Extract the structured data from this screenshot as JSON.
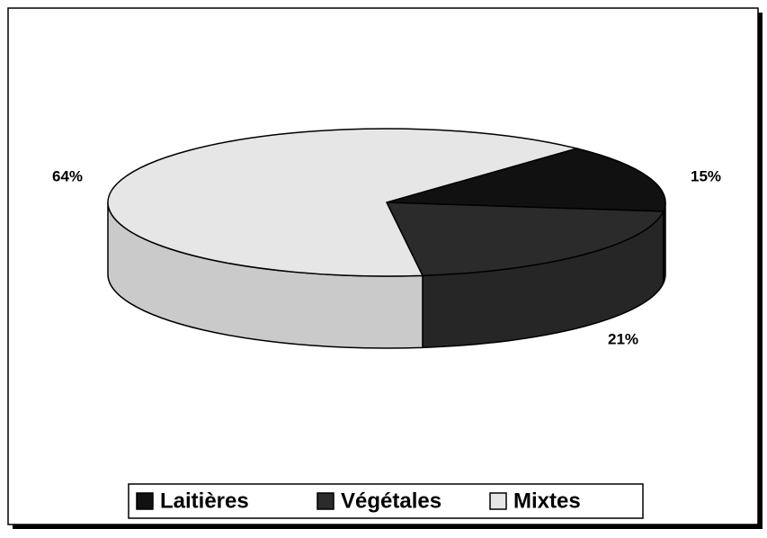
{
  "chart_data": {
    "type": "pie",
    "categories": [
      "Laitières",
      "Végétales",
      "Mixtes"
    ],
    "values": [
      15,
      21,
      64
    ],
    "value_labels": [
      "15%",
      "21%",
      "64%"
    ],
    "colors": [
      "#111111",
      "#2b2b2b",
      "#e6e6e6"
    ],
    "legend": "bottom"
  }
}
